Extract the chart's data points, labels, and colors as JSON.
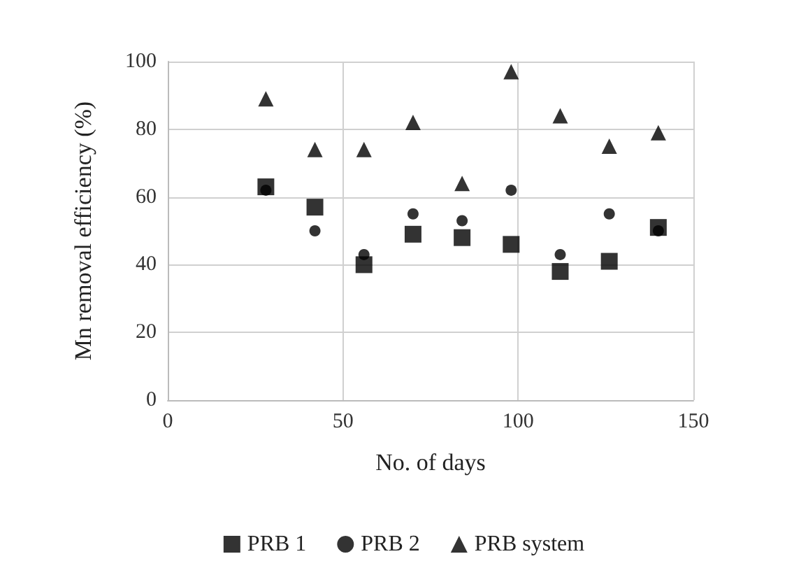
{
  "chart_data": {
    "type": "scatter",
    "xlabel": "No. of days",
    "ylabel": "Mn removal efficiency (%)",
    "x": [
      28,
      42,
      56,
      70,
      84,
      98,
      112,
      126,
      140
    ],
    "series": [
      {
        "name": "PRB 1",
        "color": "#000000",
        "marker": "square",
        "values": [
          63,
          57,
          40,
          49,
          48,
          46,
          38,
          41,
          51
        ]
      },
      {
        "name": "PRB 2",
        "color": "#000000",
        "marker": "circle",
        "values": [
          62,
          50,
          43,
          55,
          53,
          62,
          43,
          55,
          50
        ]
      },
      {
        "name": "PRB system",
        "color": "#000000",
        "marker": "triangle",
        "values": [
          89,
          74,
          74,
          82,
          64,
          97,
          84,
          75,
          79
        ]
      }
    ],
    "xlim": [
      0,
      150
    ],
    "xticks": [
      0,
      50,
      100,
      150
    ],
    "ylim": [
      0,
      100
    ],
    "yticks": [
      0,
      20,
      40,
      60,
      80,
      100
    ],
    "grid": true,
    "legend": "bottom"
  }
}
